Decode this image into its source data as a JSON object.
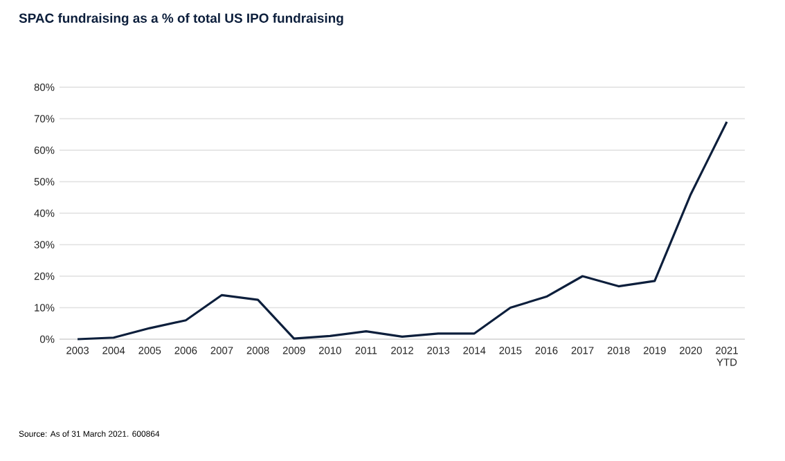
{
  "chart_data": {
    "type": "line",
    "title": "SPAC fundraising as a % of total US IPO fundraising",
    "categories": [
      "2003",
      "2004",
      "2005",
      "2006",
      "2007",
      "2008",
      "2009",
      "2010",
      "2011",
      "2012",
      "2013",
      "2014",
      "2015",
      "2016",
      "2017",
      "2018",
      "2019",
      "2020",
      "2021 YTD"
    ],
    "series": [
      {
        "color": "#0d1f3c",
        "values": [
          0,
          0.5,
          3.5,
          6,
          14,
          12.5,
          0.2,
          1,
          2.5,
          0.8,
          1.8,
          1.8,
          10,
          13.5,
          20,
          16.8,
          18.5,
          46,
          69
        ]
      }
    ],
    "ylim": [
      0,
      80
    ],
    "yticks": [
      {
        "value": 0,
        "label": "0%"
      },
      {
        "value": 10,
        "label": "10%"
      },
      {
        "value": 20,
        "label": "20%"
      },
      {
        "value": 30,
        "label": "30%"
      },
      {
        "value": 40,
        "label": "40%"
      },
      {
        "value": 50,
        "label": "50%"
      },
      {
        "value": 60,
        "label": "60%"
      },
      {
        "value": 70,
        "label": "70%"
      },
      {
        "value": 80,
        "label": "80%"
      }
    ],
    "grid": "y",
    "marker": "none",
    "line_style": "solid",
    "annotations": [
      "Source: As of 31 March 2021. 600864"
    ]
  }
}
